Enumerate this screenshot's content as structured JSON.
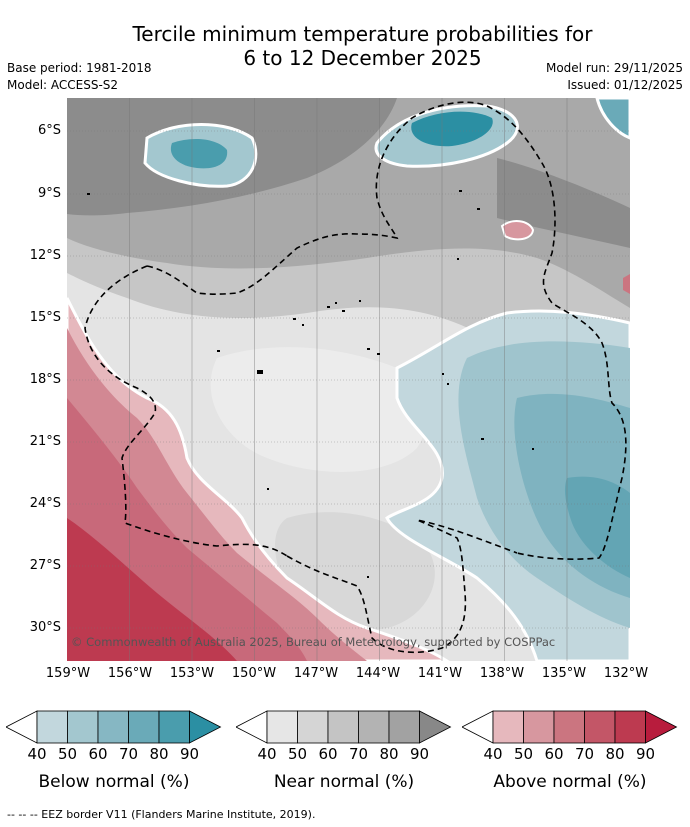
{
  "title_line1": "Tercile minimum temperature probabilities for",
  "title_line2": "6 to 12 December 2025",
  "base_period": "Base period: 1981-2018",
  "model": "Model: ACCESS-S2",
  "model_run": "Model run: 29/11/2025",
  "issued": "Issued: 01/12/2025",
  "lat_labels": [
    "6°S",
    "9°S",
    "12°S",
    "15°S",
    "18°S",
    "21°S",
    "24°S",
    "27°S",
    "30°S"
  ],
  "lon_labels": [
    "159°W",
    "156°W",
    "153°W",
    "150°W",
    "147°W",
    "144°W",
    "141°W",
    "138°W",
    "135°W",
    "132°W"
  ],
  "copyright": "© Commonwealth of Australia 2025, Bureau of Meteorology, supported by COSPPac",
  "colorbars": [
    {
      "label": "Below normal (%)",
      "ticks": [
        "40",
        "50",
        "60",
        "70",
        "80",
        "90"
      ],
      "colors": [
        "#ffffff",
        "#c2d7dd",
        "#a3c7cf",
        "#86b7c3",
        "#6aaab8",
        "#4a9dad",
        "#2b8fa3"
      ]
    },
    {
      "label": "Near normal (%)",
      "ticks": [
        "40",
        "50",
        "60",
        "70",
        "80",
        "90"
      ],
      "colors": [
        "#ffffff",
        "#e6e6e6",
        "#d5d5d5",
        "#c4c4c4",
        "#b3b3b3",
        "#a2a2a2",
        "#888888"
      ]
    },
    {
      "label": "Above normal (%)",
      "ticks": [
        "40",
        "50",
        "60",
        "70",
        "80",
        "90"
      ],
      "colors": [
        "#ffffff",
        "#e6b8bd",
        "#d7979f",
        "#cb7580",
        "#c35667",
        "#bd3a50",
        "#b81c3d"
      ]
    }
  ],
  "footer": "--  --  -- EEZ border V11 (Flanders Marine Institute, 2019)."
}
